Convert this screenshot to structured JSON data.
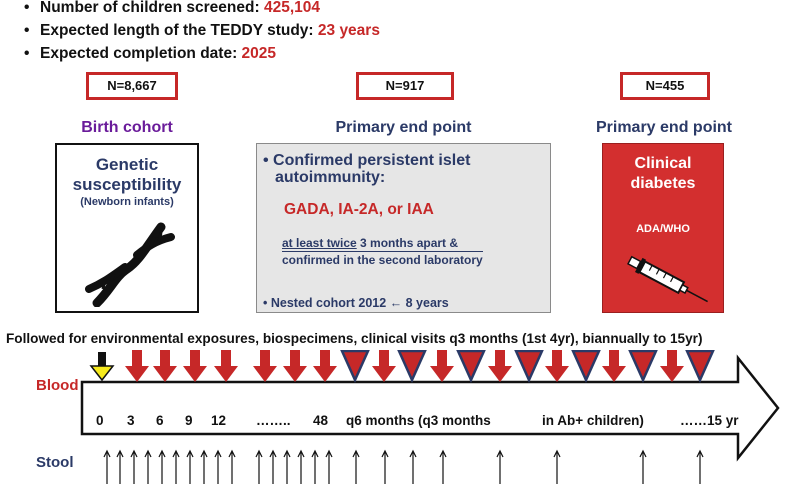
{
  "summary": [
    {
      "label": "Number of children screened: ",
      "value": "425,104"
    },
    {
      "label": "Expected length of the TEDDY study: ",
      "value": "23 years"
    },
    {
      "label": "Expected completion date: ",
      "value": "2025"
    }
  ],
  "bullet_char": "•",
  "cohorts": {
    "birth": {
      "n": "N=8,667",
      "heading": "Birth cohort",
      "title_line1": "Genetic",
      "title_line2": "susceptibility",
      "subtitle": "(Newborn infants)"
    },
    "islet": {
      "n": "N=917",
      "heading": "Primary end point",
      "bullet1_line1": "• Confirmed persistent islet",
      "bullet1_line2": "autoimmunity:",
      "antibodies": "GADA, IA-2A, or IAA",
      "twice_underlined": "at least twice",
      "twice_rest": " 3 months apart &",
      "confirm_line": "confirmed in the second laboratory",
      "bullet2": "• Nested cohort 2012 ← 8 years"
    },
    "diabetes": {
      "n": "N=455",
      "heading": "Primary end point",
      "title_line1": "Clinical",
      "title_line2": "diabetes",
      "criteria": "ADA/WHO"
    }
  },
  "followup_text": "Followed for environmental exposures, biospecimens, clinical visits q3 months (1st 4yr), biannually to 15yr)",
  "timeline": {
    "blood_label": "Blood",
    "stool_label": "Stool",
    "ticks": [
      "0",
      "3",
      "6",
      "9",
      "12",
      "……..",
      "48",
      "q6 months (q3 months",
      "in Ab+ children)",
      "……15 yr"
    ]
  },
  "colors": {
    "red": "#c62828",
    "navy": "#2b3a67",
    "purple": "#6a1b9a",
    "yellow": "#f6ea1c",
    "grey": "#e6e6e6"
  },
  "icons": [
    "dna-icon",
    "syringe-icon",
    "blood-arrow-icon",
    "blood-ab-arrow-icon",
    "stool-arrow-icon",
    "timeline-arrow"
  ]
}
